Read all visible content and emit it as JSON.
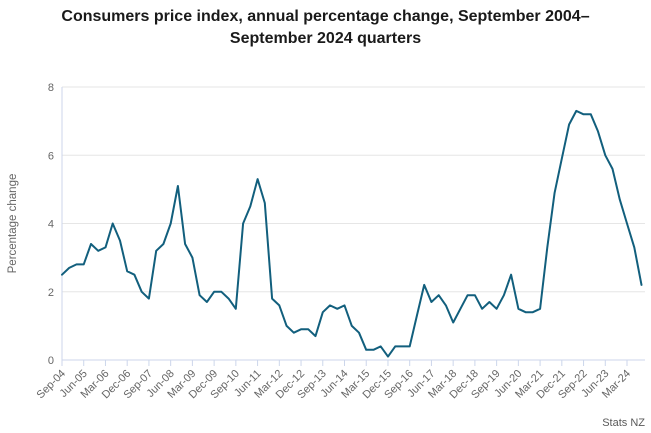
{
  "header": {
    "title": "Consumers price index, annual percentage change, September 2004–September 2024 quarters"
  },
  "credits": {
    "label": "Stats NZ"
  },
  "chart_data": {
    "type": "line",
    "title": "Consumers price index, annual percentage change, September 2004–September 2024 quarters",
    "xlabel": "",
    "ylabel": "Percentage change",
    "ylim": [
      0,
      8
    ],
    "yticks": [
      0,
      2,
      4,
      6,
      8
    ],
    "x_tick_label_every": 3,
    "grid": "horizontal-only",
    "legend": "none",
    "line_color": "#125f7d",
    "axis_color": "#ccd6eb",
    "grid_color": "#e6e6e6",
    "label_color": "#666666",
    "categories": [
      "Sep-04",
      "Dec-04",
      "Mar-05",
      "Jun-05",
      "Sep-05",
      "Dec-05",
      "Mar-06",
      "Jun-06",
      "Sep-06",
      "Dec-06",
      "Mar-07",
      "Jun-07",
      "Sep-07",
      "Dec-07",
      "Mar-08",
      "Jun-08",
      "Sep-08",
      "Dec-08",
      "Mar-09",
      "Jun-09",
      "Sep-09",
      "Dec-09",
      "Mar-10",
      "Jun-10",
      "Sep-10",
      "Dec-10",
      "Mar-11",
      "Jun-11",
      "Sep-11",
      "Dec-11",
      "Mar-12",
      "Jun-12",
      "Sep-12",
      "Dec-12",
      "Mar-13",
      "Jun-13",
      "Sep-13",
      "Dec-13",
      "Mar-14",
      "Jun-14",
      "Sep-14",
      "Dec-14",
      "Mar-15",
      "Jun-15",
      "Sep-15",
      "Dec-15",
      "Mar-16",
      "Jun-16",
      "Sep-16",
      "Dec-16",
      "Mar-17",
      "Jun-17",
      "Sep-17",
      "Dec-17",
      "Mar-18",
      "Jun-18",
      "Sep-18",
      "Dec-18",
      "Mar-19",
      "Jun-19",
      "Sep-19",
      "Dec-19",
      "Mar-20",
      "Jun-20",
      "Sep-20",
      "Dec-20",
      "Mar-21",
      "Jun-21",
      "Sep-21",
      "Dec-21",
      "Mar-22",
      "Jun-22",
      "Sep-22",
      "Dec-22",
      "Mar-23",
      "Jun-23",
      "Sep-23",
      "Dec-23",
      "Mar-24",
      "Jun-24",
      "Sep-24"
    ],
    "values": [
      2.5,
      2.7,
      2.8,
      2.8,
      3.4,
      3.2,
      3.3,
      4.0,
      3.5,
      2.6,
      2.5,
      2.0,
      1.8,
      3.2,
      3.4,
      4.0,
      5.1,
      3.4,
      3.0,
      1.9,
      1.7,
      2.0,
      2.0,
      1.8,
      1.5,
      4.0,
      4.5,
      5.3,
      4.6,
      1.8,
      1.6,
      1.0,
      0.8,
      0.9,
      0.9,
      0.7,
      1.4,
      1.6,
      1.5,
      1.6,
      1.0,
      0.8,
      0.3,
      0.3,
      0.4,
      0.1,
      0.4,
      0.4,
      0.4,
      1.3,
      2.2,
      1.7,
      1.9,
      1.6,
      1.1,
      1.5,
      1.9,
      1.9,
      1.5,
      1.7,
      1.5,
      1.9,
      2.5,
      1.5,
      1.4,
      1.4,
      1.5,
      3.3,
      4.9,
      5.9,
      6.9,
      7.3,
      7.2,
      7.2,
      6.7,
      6.0,
      5.6,
      4.7,
      4.0,
      3.3,
      2.2
    ]
  }
}
